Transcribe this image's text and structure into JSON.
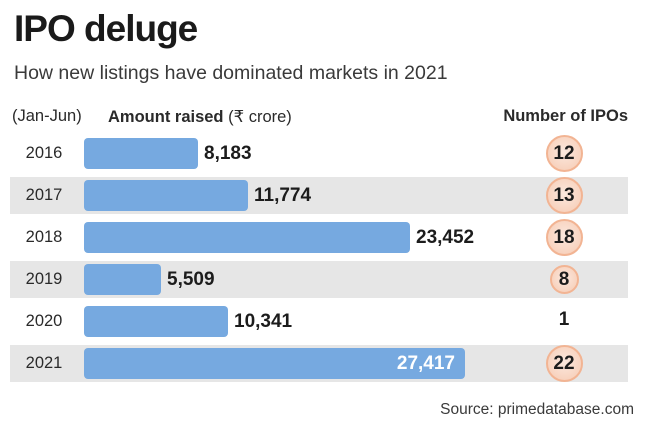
{
  "title": "IPO deluge",
  "subtitle": "How new listings have dominated markets in 2021",
  "headers": {
    "period": "(Jan-Jun)",
    "amount_bold": "Amount raised",
    "amount_unit": "(₹ crore)",
    "count": "Number of IPOs"
  },
  "source": "Source: primedatabase.com",
  "chart_data": {
    "type": "bar",
    "orientation": "horizontal",
    "title": "IPO deluge",
    "subtitle": "How new listings have dominated markets in 2021",
    "categories": [
      "2016",
      "2017",
      "2018",
      "2019",
      "2020",
      "2021"
    ],
    "series": [
      {
        "name": "Amount raised (₹ crore)",
        "values": [
          8183,
          11774,
          23452,
          5509,
          10341,
          27417
        ],
        "labels": [
          "8,183",
          "11,774",
          "23,452",
          "5,509",
          "10,341",
          "27,417"
        ]
      },
      {
        "name": "Number of IPOs",
        "values": [
          12,
          13,
          18,
          8,
          1,
          22
        ],
        "labels": [
          "12",
          "13",
          "18",
          "8",
          "1",
          "22"
        ]
      }
    ],
    "xlim": [
      0,
      27417
    ],
    "grid": false,
    "legend": "none",
    "colors": {
      "bar": "#76a9e0",
      "bubble": "#f8d3bf",
      "bubble_edge": "#f2b493",
      "row_shade": "#e6e6e6"
    }
  }
}
